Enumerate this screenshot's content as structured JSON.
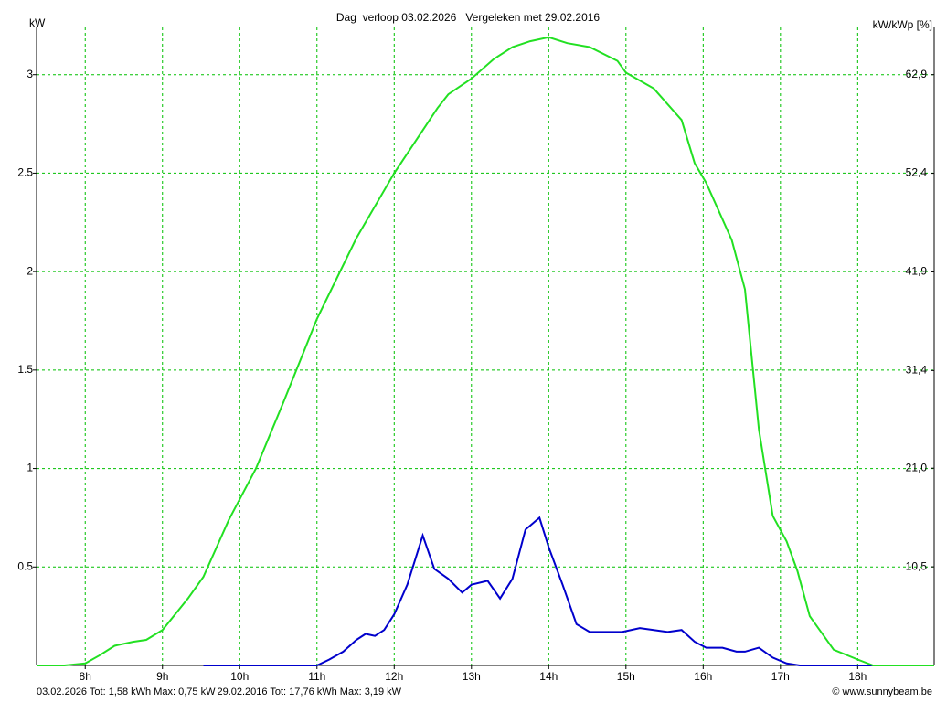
{
  "chart_data": {
    "type": "line",
    "title": "Dag  verloop 03.02.2026   Vergeleken met 29.02.2016",
    "y_label": "kW",
    "y2_label": "kW/kWp [%]",
    "credit": "© www.sunnybeam.be",
    "xlim": [
      7.37,
      18.99
    ],
    "xticks": [
      {
        "value": 8,
        "label": "8h"
      },
      {
        "value": 9,
        "label": "9h"
      },
      {
        "value": 10,
        "label": "10h"
      },
      {
        "value": 11,
        "label": "11h"
      },
      {
        "value": 12,
        "label": "12h"
      },
      {
        "value": 13,
        "label": "13h"
      },
      {
        "value": 14,
        "label": "14h"
      },
      {
        "value": 15,
        "label": "15h"
      },
      {
        "value": 16,
        "label": "16h"
      },
      {
        "value": 17,
        "label": "17h"
      },
      {
        "value": 18,
        "label": "18h"
      }
    ],
    "ylim": [
      0,
      3.24
    ],
    "yticks": [
      0.5,
      1,
      1.5,
      2,
      2.5,
      3
    ],
    "y2lim": [
      0,
      67.93
    ],
    "y2ticks": [
      {
        "value": 10.5,
        "label": "10,5"
      },
      {
        "value": 21.0,
        "label": "21,0"
      },
      {
        "value": 31.4,
        "label": "31,4"
      },
      {
        "value": 41.9,
        "label": "41,9"
      },
      {
        "value": 52.4,
        "label": "52,4"
      },
      {
        "value": 62.9,
        "label": "62,9"
      }
    ],
    "grid": true,
    "series": [
      {
        "name": "03.02.2026 Tot: 1,58 kWh Max: 0,75 kW",
        "color": "#0000cc",
        "x": [
          9.53,
          11.0,
          11.16,
          11.34,
          11.51,
          11.63,
          11.75,
          11.87,
          12.0,
          12.17,
          12.37,
          12.52,
          12.7,
          12.88,
          13.0,
          13.21,
          13.37,
          13.53,
          13.7,
          13.88,
          14.0,
          14.18,
          14.36,
          14.53,
          14.71,
          14.95,
          15.18,
          15.36,
          15.54,
          15.72,
          15.89,
          16.04,
          16.25,
          16.43,
          16.54,
          16.72,
          16.9,
          17.08,
          17.25,
          18.38
        ],
        "values": [
          0,
          0,
          0.03,
          0.07,
          0.13,
          0.16,
          0.15,
          0.18,
          0.26,
          0.41,
          0.66,
          0.49,
          0.44,
          0.37,
          0.41,
          0.43,
          0.34,
          0.44,
          0.69,
          0.75,
          0.6,
          0.41,
          0.21,
          0.17,
          0.17,
          0.17,
          0.19,
          0.18,
          0.17,
          0.18,
          0.12,
          0.09,
          0.09,
          0.07,
          0.07,
          0.09,
          0.04,
          0.01,
          0,
          0
        ]
      },
      {
        "name": "29.02.2016 Tot: 17,76 kWh Max: 3,19 kW",
        "color": "#22e022",
        "x": [
          7.37,
          7.73,
          8.0,
          8.18,
          8.38,
          8.62,
          8.79,
          9.0,
          9.33,
          9.53,
          9.86,
          10.21,
          10.57,
          11.0,
          11.51,
          12.0,
          12.34,
          12.56,
          12.7,
          13.0,
          13.29,
          13.53,
          13.76,
          14.0,
          14.24,
          14.53,
          14.89,
          15.0,
          15.36,
          15.72,
          15.89,
          16.04,
          16.37,
          16.54,
          16.72,
          16.9,
          17.08,
          17.22,
          17.38,
          17.69,
          18.0,
          18.2,
          18.99
        ],
        "values": [
          0,
          0,
          0.01,
          0.05,
          0.1,
          0.12,
          0.13,
          0.18,
          0.34,
          0.45,
          0.74,
          1.0,
          1.34,
          1.76,
          2.17,
          2.5,
          2.7,
          2.83,
          2.9,
          2.98,
          3.08,
          3.14,
          3.17,
          3.19,
          3.16,
          3.14,
          3.07,
          3.01,
          2.93,
          2.77,
          2.55,
          2.45,
          2.16,
          1.91,
          1.2,
          0.76,
          0.63,
          0.48,
          0.25,
          0.08,
          0.03,
          0,
          0
        ]
      }
    ]
  }
}
